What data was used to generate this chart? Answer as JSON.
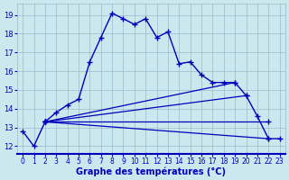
{
  "xlabel": "Graphe des températures (°C)",
  "bg_color": "#cce8ef",
  "line_color": "#0000bb",
  "grid_color": "#99bbcc",
  "ylim": [
    11.6,
    19.6
  ],
  "xlim": [
    -0.5,
    23.5
  ],
  "yticks": [
    12,
    13,
    14,
    15,
    16,
    17,
    18,
    19
  ],
  "xticks": [
    0,
    1,
    2,
    3,
    4,
    5,
    6,
    7,
    8,
    9,
    10,
    11,
    12,
    13,
    14,
    15,
    16,
    17,
    18,
    19,
    20,
    21,
    22,
    23
  ],
  "main_x": [
    0,
    1,
    2,
    3,
    4,
    5,
    6,
    7,
    8,
    9,
    10,
    11,
    12,
    13,
    14,
    15,
    16,
    17,
    18,
    19,
    20,
    21,
    22,
    23
  ],
  "main_y": [
    12.8,
    12.0,
    13.3,
    13.8,
    14.2,
    14.5,
    16.5,
    17.8,
    19.1,
    18.8,
    18.5,
    18.8,
    17.8,
    18.1,
    16.4,
    16.5,
    15.8,
    15.4,
    15.4,
    15.4,
    14.7,
    13.6,
    12.4,
    12.4
  ],
  "fan_lines": [
    {
      "x": [
        2,
        19
      ],
      "y": [
        13.3,
        15.4
      ]
    },
    {
      "x": [
        2,
        20
      ],
      "y": [
        13.3,
        14.7
      ]
    },
    {
      "x": [
        2,
        22
      ],
      "y": [
        13.3,
        13.3
      ]
    },
    {
      "x": [
        2,
        22
      ],
      "y": [
        13.3,
        12.4
      ]
    }
  ]
}
